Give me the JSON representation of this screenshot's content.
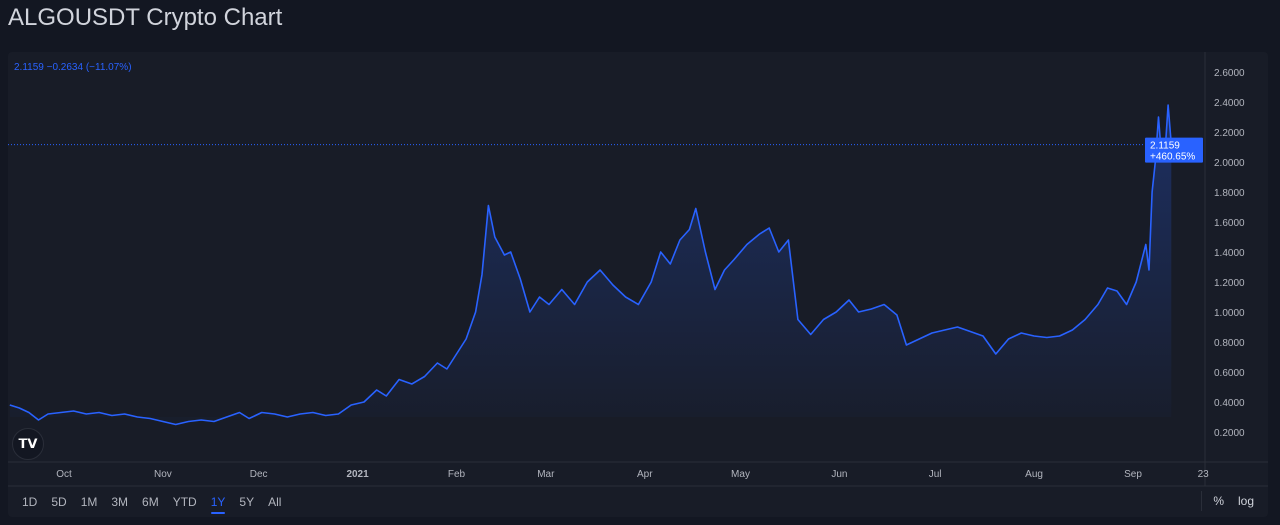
{
  "title": "ALGOUSDT Crypto Chart",
  "legend": {
    "price": "2.1159",
    "change": "−0.2634",
    "change_pct": "(−11.07%)"
  },
  "price_label": {
    "value": "2.1159",
    "pct": "+460.65%"
  },
  "range_buttons": [
    "1D",
    "5D",
    "1M",
    "3M",
    "6M",
    "YTD",
    "1Y",
    "5Y",
    "All"
  ],
  "active_range": "1Y",
  "scale_buttons": {
    "percent": "%",
    "log": "log"
  },
  "logo": "TV",
  "colors": {
    "line": "#2962ff",
    "background": "#131722",
    "panel": "#181c27",
    "grid": "#2a2e39",
    "text": "#b2b5be"
  },
  "chart_data": {
    "type": "area",
    "title": "",
    "xlabel": "",
    "ylabel": "",
    "ylim": [
      0.05,
      2.7
    ],
    "yticks": [
      "2.6000",
      "2.4000",
      "2.2000",
      "2.0000",
      "1.8000",
      "1.6000",
      "1.4000",
      "1.2000",
      "1.0000",
      "0.8000",
      "0.6000",
      "0.4000",
      "0.2000"
    ],
    "xticks": [
      {
        "label": "Oct",
        "date": "2020-10-01"
      },
      {
        "label": "Nov",
        "date": "2020-11-01"
      },
      {
        "label": "Dec",
        "date": "2020-12-01"
      },
      {
        "label": "2021",
        "date": "2021-01-01"
      },
      {
        "label": "Feb",
        "date": "2021-02-01"
      },
      {
        "label": "Mar",
        "date": "2021-03-01"
      },
      {
        "label": "Apr",
        "date": "2021-04-01"
      },
      {
        "label": "May",
        "date": "2021-05-01"
      },
      {
        "label": "Jun",
        "date": "2021-06-01"
      },
      {
        "label": "Jul",
        "date": "2021-07-01"
      },
      {
        "label": "Aug",
        "date": "2021-08-01"
      },
      {
        "label": "Sep",
        "date": "2021-09-01"
      },
      {
        "label": "23",
        "date": "2021-09-23"
      }
    ],
    "last_value": 2.1159,
    "grid": false,
    "points": [
      [
        "2020-09-14",
        0.38
      ],
      [
        "2020-09-17",
        0.36
      ],
      [
        "2020-09-20",
        0.33
      ],
      [
        "2020-09-23",
        0.28
      ],
      [
        "2020-09-26",
        0.32
      ],
      [
        "2020-09-30",
        0.33
      ],
      [
        "2020-10-04",
        0.34
      ],
      [
        "2020-10-08",
        0.32
      ],
      [
        "2020-10-12",
        0.33
      ],
      [
        "2020-10-16",
        0.31
      ],
      [
        "2020-10-20",
        0.32
      ],
      [
        "2020-10-24",
        0.3
      ],
      [
        "2020-10-28",
        0.29
      ],
      [
        "2020-11-01",
        0.27
      ],
      [
        "2020-11-05",
        0.25
      ],
      [
        "2020-11-09",
        0.27
      ],
      [
        "2020-11-13",
        0.28
      ],
      [
        "2020-11-17",
        0.27
      ],
      [
        "2020-11-21",
        0.3
      ],
      [
        "2020-11-25",
        0.33
      ],
      [
        "2020-11-28",
        0.29
      ],
      [
        "2020-12-02",
        0.33
      ],
      [
        "2020-12-06",
        0.32
      ],
      [
        "2020-12-10",
        0.3
      ],
      [
        "2020-12-14",
        0.32
      ],
      [
        "2020-12-18",
        0.33
      ],
      [
        "2020-12-22",
        0.31
      ],
      [
        "2020-12-26",
        0.32
      ],
      [
        "2020-12-30",
        0.38
      ],
      [
        "2021-01-03",
        0.4
      ],
      [
        "2021-01-07",
        0.48
      ],
      [
        "2021-01-10",
        0.44
      ],
      [
        "2021-01-14",
        0.55
      ],
      [
        "2021-01-18",
        0.52
      ],
      [
        "2021-01-22",
        0.57
      ],
      [
        "2021-01-26",
        0.66
      ],
      [
        "2021-01-29",
        0.62
      ],
      [
        "2021-02-01",
        0.72
      ],
      [
        "2021-02-04",
        0.82
      ],
      [
        "2021-02-07",
        1.0
      ],
      [
        "2021-02-09",
        1.25
      ],
      [
        "2021-02-11",
        1.71
      ],
      [
        "2021-02-13",
        1.5
      ],
      [
        "2021-02-16",
        1.38
      ],
      [
        "2021-02-18",
        1.4
      ],
      [
        "2021-02-21",
        1.22
      ],
      [
        "2021-02-24",
        1.0
      ],
      [
        "2021-02-27",
        1.1
      ],
      [
        "2021-03-02",
        1.05
      ],
      [
        "2021-03-06",
        1.15
      ],
      [
        "2021-03-10",
        1.05
      ],
      [
        "2021-03-14",
        1.2
      ],
      [
        "2021-03-18",
        1.28
      ],
      [
        "2021-03-22",
        1.18
      ],
      [
        "2021-03-26",
        1.1
      ],
      [
        "2021-03-30",
        1.05
      ],
      [
        "2021-04-03",
        1.2
      ],
      [
        "2021-04-06",
        1.4
      ],
      [
        "2021-04-09",
        1.32
      ],
      [
        "2021-04-12",
        1.48
      ],
      [
        "2021-04-15",
        1.55
      ],
      [
        "2021-04-17",
        1.69
      ],
      [
        "2021-04-20",
        1.4
      ],
      [
        "2021-04-23",
        1.15
      ],
      [
        "2021-04-26",
        1.28
      ],
      [
        "2021-04-29",
        1.35
      ],
      [
        "2021-05-03",
        1.45
      ],
      [
        "2021-05-07",
        1.52
      ],
      [
        "2021-05-10",
        1.56
      ],
      [
        "2021-05-13",
        1.4
      ],
      [
        "2021-05-16",
        1.48
      ],
      [
        "2021-05-19",
        0.95
      ],
      [
        "2021-05-23",
        0.85
      ],
      [
        "2021-05-27",
        0.95
      ],
      [
        "2021-05-31",
        1.0
      ],
      [
        "2021-06-04",
        1.08
      ],
      [
        "2021-06-07",
        1.0
      ],
      [
        "2021-06-11",
        1.02
      ],
      [
        "2021-06-15",
        1.05
      ],
      [
        "2021-06-19",
        0.98
      ],
      [
        "2021-06-22",
        0.78
      ],
      [
        "2021-06-26",
        0.82
      ],
      [
        "2021-06-30",
        0.86
      ],
      [
        "2021-07-04",
        0.88
      ],
      [
        "2021-07-08",
        0.9
      ],
      [
        "2021-07-12",
        0.87
      ],
      [
        "2021-07-16",
        0.84
      ],
      [
        "2021-07-20",
        0.72
      ],
      [
        "2021-07-24",
        0.82
      ],
      [
        "2021-07-28",
        0.86
      ],
      [
        "2021-08-01",
        0.84
      ],
      [
        "2021-08-05",
        0.83
      ],
      [
        "2021-08-09",
        0.84
      ],
      [
        "2021-08-13",
        0.88
      ],
      [
        "2021-08-17",
        0.95
      ],
      [
        "2021-08-21",
        1.05
      ],
      [
        "2021-08-24",
        1.16
      ],
      [
        "2021-08-27",
        1.14
      ],
      [
        "2021-08-30",
        1.05
      ],
      [
        "2021-09-02",
        1.2
      ],
      [
        "2021-09-05",
        1.45
      ],
      [
        "2021-09-06",
        1.28
      ],
      [
        "2021-09-07",
        1.8
      ],
      [
        "2021-09-08",
        2.0
      ],
      [
        "2021-09-09",
        2.3
      ],
      [
        "2021-09-10",
        2.02
      ],
      [
        "2021-09-11",
        2.05
      ],
      [
        "2021-09-12",
        2.38
      ],
      [
        "2021-09-13",
        2.1159
      ]
    ]
  }
}
